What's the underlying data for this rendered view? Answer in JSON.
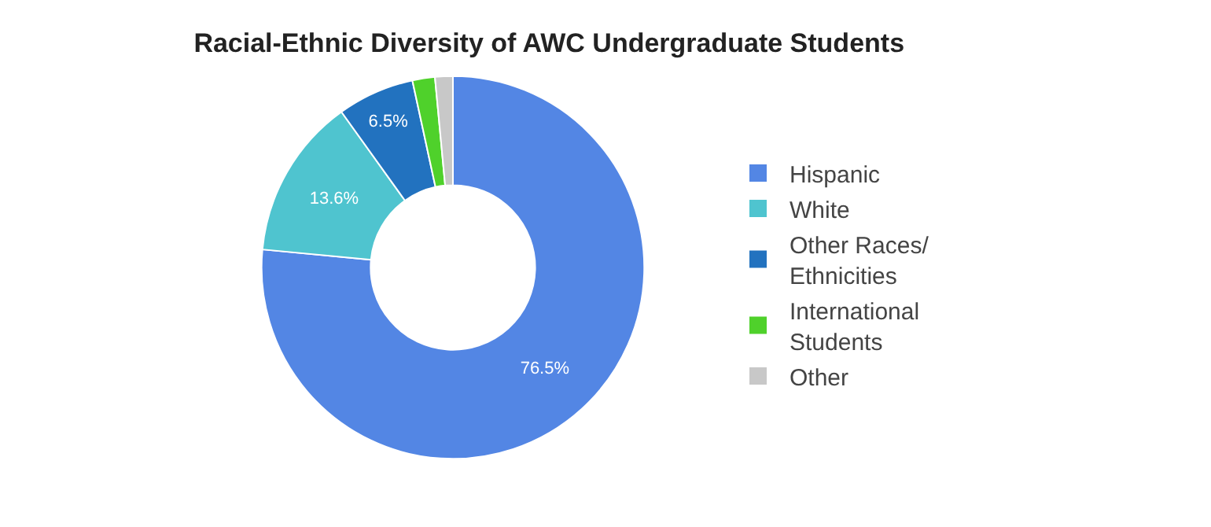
{
  "chart_data": {
    "type": "donut",
    "title": "Racial-Ethnic Diversity of AWC Undergraduate Students",
    "categories": [
      "Hispanic",
      "White",
      "Other Races/ Ethnicities",
      "International Students",
      "Other"
    ],
    "values": [
      76.5,
      13.6,
      6.5,
      1.9,
      1.5
    ],
    "colors": [
      "#5386e4",
      "#4fc4cf",
      "#2272bf",
      "#4fd12b",
      "#c8c8c8"
    ],
    "value_labels": [
      "76.5%",
      "13.6%",
      "6.5%",
      null,
      null
    ],
    "legend": "right"
  }
}
